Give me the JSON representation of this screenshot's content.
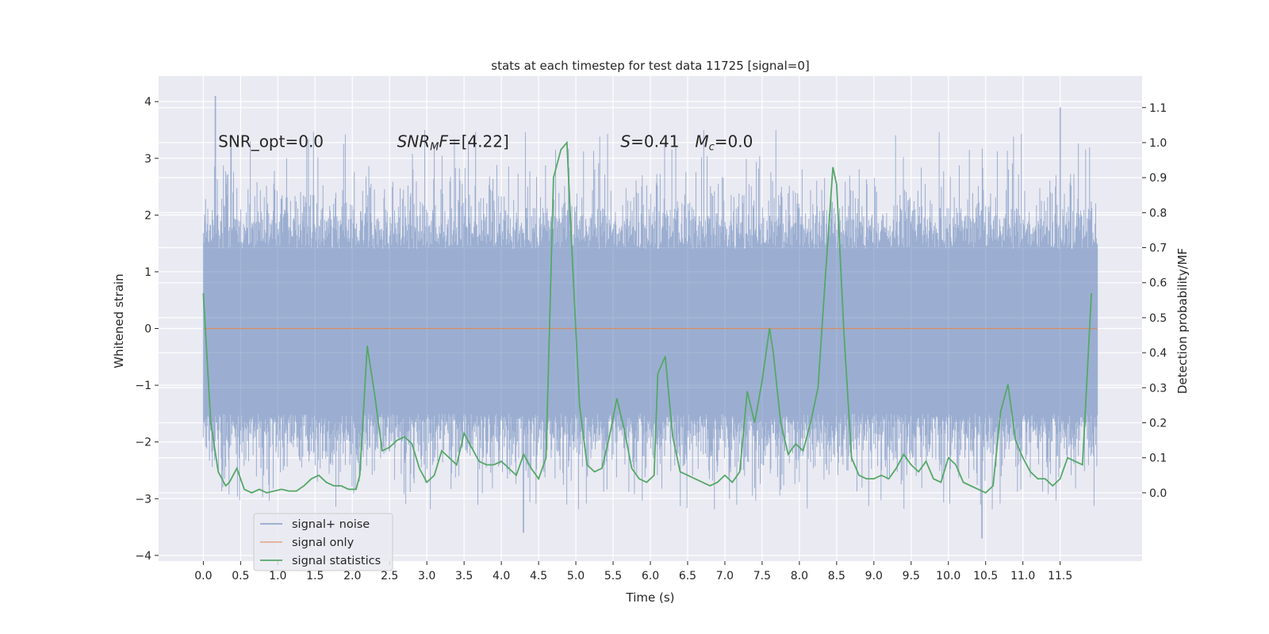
{
  "chart_data": {
    "type": "line",
    "title": "stats at each timestep for test data 11725 [signal=0]",
    "xlabel": "Time (s)",
    "ylabel": "Whitened strain",
    "y2label": "Detection probability/MF",
    "xlim": [
      -0.6,
      12.6
    ],
    "ylim": [
      -4.1,
      4.45
    ],
    "y2lim": [
      -0.195,
      1.19
    ],
    "xticks": [
      0.0,
      0.5,
      1.0,
      1.5,
      2.0,
      2.5,
      3.0,
      3.5,
      4.0,
      4.5,
      5.0,
      5.5,
      6.0,
      6.5,
      7.0,
      7.5,
      8.0,
      8.5,
      9.0,
      9.5,
      10.0,
      10.5,
      11.0,
      11.5
    ],
    "xtick_labels": [
      "0.0",
      "0.5",
      "1.0",
      "1.5",
      "2.0",
      "2.5",
      "3.0",
      "3.5",
      "4.0",
      "4.5",
      "5.0",
      "5.5",
      "6.0",
      "6.5",
      "7.0",
      "7.5",
      "8.0",
      "8.5",
      "9.0",
      "9.5",
      "10.0",
      "10.5",
      "11.0",
      "11.5"
    ],
    "yticks": [
      -4,
      -3,
      -2,
      -1,
      0,
      1,
      2,
      3,
      4
    ],
    "ytick_labels": [
      "−4",
      "−3",
      "−2",
      "−1",
      "0",
      "1",
      "2",
      "3",
      "4"
    ],
    "y2ticks": [
      0.0,
      0.1,
      0.2,
      0.3,
      0.4,
      0.5,
      0.6,
      0.7,
      0.8,
      0.9,
      1.0,
      1.1
    ],
    "y2tick_labels": [
      "0.0",
      "0.1",
      "0.2",
      "0.3",
      "0.4",
      "0.5",
      "0.6",
      "0.7",
      "0.8",
      "0.9",
      "1.0",
      "1.1"
    ],
    "grid": true,
    "legend_position": "lower-left",
    "annotations": [
      {
        "id": "snr-opt",
        "text": "SNR_opt=0.0",
        "x": 0.2,
        "y": 3.2
      },
      {
        "id": "snr-mf",
        "text": "SNR_MF=[4.22]",
        "x": 2.6,
        "y": 3.2
      },
      {
        "id": "s-value",
        "text": "S=0.41",
        "x": 5.6,
        "y": 3.2
      },
      {
        "id": "mc-value",
        "text": "M_c=0.0",
        "x": 6.6,
        "y": 3.2
      }
    ],
    "series": [
      {
        "name": "signal+ noise",
        "color": "#4c72b0",
        "axis": "left",
        "description": "whitened strain noise, x from 0.0 to 12.0 s, amplitude roughly within [-3.6, 4.1]",
        "x_range": [
          0.0,
          12.0
        ],
        "peaks": [
          {
            "x": 0.16,
            "y": 4.1
          },
          {
            "x": 11.5,
            "y": 3.9
          },
          {
            "x": 10.45,
            "y": -3.7
          },
          {
            "x": 4.3,
            "y": -3.6
          }
        ]
      },
      {
        "name": "signal only",
        "color": "#dd8452",
        "axis": "left",
        "x": [
          0.0,
          12.0
        ],
        "values": [
          0.0,
          0.0
        ]
      },
      {
        "name": "signal statistics",
        "color": "#55a868",
        "axis": "right",
        "x": [
          0.0,
          0.1,
          0.2,
          0.3,
          0.35,
          0.45,
          0.55,
          0.65,
          0.75,
          0.85,
          0.95,
          1.05,
          1.15,
          1.25,
          1.35,
          1.45,
          1.55,
          1.65,
          1.75,
          1.85,
          1.95,
          2.05,
          2.1,
          2.2,
          2.3,
          2.4,
          2.5,
          2.6,
          2.7,
          2.8,
          2.9,
          3.0,
          3.1,
          3.2,
          3.3,
          3.4,
          3.5,
          3.6,
          3.7,
          3.8,
          3.9,
          4.0,
          4.1,
          4.2,
          4.3,
          4.4,
          4.5,
          4.6,
          4.7,
          4.8,
          4.88,
          4.95,
          5.05,
          5.15,
          5.25,
          5.35,
          5.45,
          5.55,
          5.65,
          5.75,
          5.85,
          5.95,
          6.05,
          6.1,
          6.2,
          6.3,
          6.4,
          6.5,
          6.6,
          6.7,
          6.8,
          6.9,
          7.0,
          7.1,
          7.2,
          7.3,
          7.4,
          7.5,
          7.6,
          7.65,
          7.75,
          7.85,
          7.95,
          8.05,
          8.15,
          8.25,
          8.35,
          8.45,
          8.5,
          8.6,
          8.7,
          8.8,
          8.9,
          9.0,
          9.1,
          9.2,
          9.3,
          9.4,
          9.5,
          9.6,
          9.7,
          9.8,
          9.9,
          10.0,
          10.1,
          10.2,
          10.3,
          10.4,
          10.5,
          10.6,
          10.7,
          10.8,
          10.9,
          11.0,
          11.1,
          11.2,
          11.3,
          11.4,
          11.5,
          11.6,
          11.7,
          11.8,
          11.92
        ],
        "values": [
          0.57,
          0.2,
          0.06,
          0.02,
          0.03,
          0.07,
          0.01,
          0.0,
          0.01,
          0.0,
          0.005,
          0.01,
          0.005,
          0.005,
          0.02,
          0.04,
          0.05,
          0.03,
          0.02,
          0.02,
          0.01,
          0.01,
          0.05,
          0.42,
          0.28,
          0.12,
          0.13,
          0.15,
          0.16,
          0.14,
          0.07,
          0.03,
          0.05,
          0.12,
          0.1,
          0.08,
          0.17,
          0.13,
          0.09,
          0.08,
          0.08,
          0.09,
          0.07,
          0.05,
          0.11,
          0.07,
          0.04,
          0.1,
          0.9,
          0.98,
          1.0,
          0.68,
          0.25,
          0.08,
          0.06,
          0.07,
          0.16,
          0.27,
          0.18,
          0.07,
          0.04,
          0.03,
          0.05,
          0.34,
          0.39,
          0.16,
          0.06,
          0.05,
          0.04,
          0.03,
          0.02,
          0.03,
          0.05,
          0.03,
          0.06,
          0.29,
          0.2,
          0.32,
          0.47,
          0.4,
          0.2,
          0.11,
          0.14,
          0.12,
          0.2,
          0.3,
          0.62,
          0.93,
          0.88,
          0.45,
          0.1,
          0.05,
          0.04,
          0.04,
          0.05,
          0.04,
          0.07,
          0.11,
          0.08,
          0.06,
          0.09,
          0.04,
          0.03,
          0.1,
          0.08,
          0.03,
          0.02,
          0.01,
          0.0,
          0.02,
          0.23,
          0.31,
          0.15,
          0.1,
          0.06,
          0.04,
          0.04,
          0.02,
          0.04,
          0.1,
          0.09,
          0.08,
          0.57
        ]
      }
    ]
  }
}
